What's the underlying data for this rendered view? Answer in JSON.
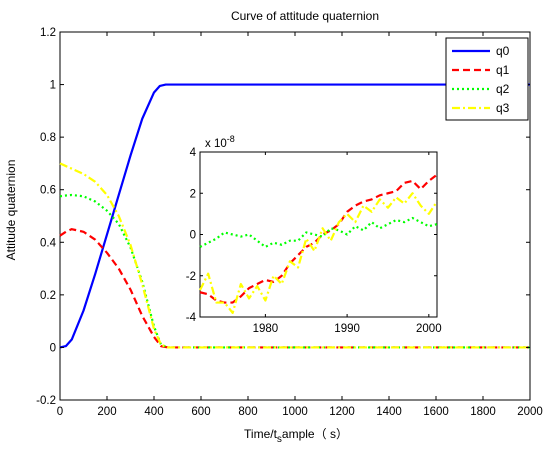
{
  "chart_data": [
    {
      "type": "line",
      "title": "Curve of attitude quaternion",
      "xlabel": "Time/t",
      "xlabel_sub": "s",
      "xlabel_tail": "ample",
      "xlabel_unit": "（ s）",
      "ylabel": "Attitude quaternion",
      "xlim": [
        0,
        2000
      ],
      "ylim": [
        -0.2,
        1.2
      ],
      "xticks": [
        "0",
        "200",
        "400",
        "600",
        "800",
        "1000",
        "1200",
        "1400",
        "1600",
        "1800",
        "2000"
      ],
      "yticks": [
        "-0.2",
        "0",
        "0.2",
        "0.4",
        "0.6",
        "0.8",
        "1",
        "1.2"
      ],
      "grid": false,
      "legend": "top-right",
      "series": [
        {
          "name": "q0",
          "color": "#0000FF",
          "style": "solid",
          "x": [
            0,
            25,
            50,
            100,
            150,
            200,
            250,
            300,
            350,
            400,
            425,
            450,
            500,
            1000,
            1500,
            2000
          ],
          "y": [
            0,
            0.005,
            0.03,
            0.14,
            0.28,
            0.43,
            0.58,
            0.73,
            0.87,
            0.97,
            0.995,
            1.0,
            1.0,
            1.0,
            1.0,
            1.0
          ]
        },
        {
          "name": "q1",
          "color": "#FF0000",
          "style": "dashed",
          "x": [
            0,
            25,
            50,
            100,
            150,
            200,
            250,
            300,
            350,
            400,
            430,
            460,
            500,
            1000,
            1500,
            2000
          ],
          "y": [
            0.425,
            0.44,
            0.45,
            0.44,
            0.41,
            0.36,
            0.3,
            0.22,
            0.12,
            0.04,
            0.005,
            0,
            0,
            0,
            0,
            0
          ]
        },
        {
          "name": "q2",
          "color": "#00FF00",
          "style": "dotted",
          "x": [
            0,
            25,
            50,
            100,
            150,
            200,
            250,
            300,
            350,
            400,
            430,
            460,
            500,
            1000,
            1500,
            2000
          ],
          "y": [
            0.575,
            0.578,
            0.58,
            0.575,
            0.555,
            0.52,
            0.47,
            0.38,
            0.25,
            0.08,
            0.01,
            0,
            0,
            0,
            0,
            0
          ]
        },
        {
          "name": "q3",
          "color": "#FFFF00",
          "style": "dashdot",
          "x": [
            0,
            25,
            50,
            100,
            150,
            200,
            250,
            300,
            350,
            400,
            430,
            460,
            500,
            1000,
            1500,
            2000
          ],
          "y": [
            0.7,
            0.69,
            0.68,
            0.66,
            0.63,
            0.58,
            0.5,
            0.39,
            0.24,
            0.07,
            0.01,
            0,
            0,
            0,
            0,
            0
          ]
        }
      ]
    },
    {
      "type": "line",
      "title": "",
      "scale_label": "x 10",
      "scale_exp": "-8",
      "xlim": [
        1972,
        2001
      ],
      "ylim": [
        -4,
        4
      ],
      "xticks": [
        "1980",
        "1990",
        "2000"
      ],
      "yticks": [
        "-4",
        "-2",
        "0",
        "2",
        "4"
      ],
      "grid": false,
      "series": [
        {
          "name": "q0",
          "color": "#0000FF",
          "style": "solid",
          "x": [],
          "y": []
        },
        {
          "name": "q1",
          "color": "#FF0000",
          "style": "dashed",
          "x": [
            1972,
            1973,
            1974,
            1975,
            1976,
            1977,
            1978,
            1979,
            1980,
            1981,
            1982,
            1983,
            1984,
            1985,
            1986,
            1987,
            1988,
            1989,
            1990,
            1991,
            1992,
            1993,
            1994,
            1995,
            1996,
            1997,
            1998,
            1999,
            2000,
            2001
          ],
          "y": [
            -2.8,
            -2.9,
            -3.2,
            -3.3,
            -3.3,
            -3.0,
            -2.6,
            -2.4,
            -2.2,
            -2.3,
            -2.0,
            -1.4,
            -1.0,
            -0.6,
            -0.4,
            0.0,
            0.2,
            0.5,
            1.1,
            1.4,
            1.6,
            1.7,
            1.9,
            2.0,
            2.1,
            2.5,
            2.6,
            2.2,
            2.6,
            2.9
          ]
        },
        {
          "name": "q2",
          "color": "#00FF00",
          "style": "dotted",
          "x": [
            1972,
            1973,
            1974,
            1975,
            1976,
            1977,
            1978,
            1979,
            1980,
            1981,
            1982,
            1983,
            1984,
            1985,
            1986,
            1987,
            1988,
            1989,
            1990,
            1991,
            1992,
            1993,
            1994,
            1995,
            1996,
            1997,
            1998,
            1999,
            2000,
            2001
          ],
          "y": [
            -0.6,
            -0.4,
            -0.2,
            0.1,
            0.0,
            -0.1,
            0.0,
            -0.3,
            -0.6,
            -0.4,
            -0.5,
            -0.3,
            -0.3,
            0.1,
            0.0,
            -0.1,
            0.3,
            0.2,
            0.0,
            0.4,
            0.2,
            0.6,
            0.3,
            0.5,
            0.7,
            0.6,
            0.8,
            0.6,
            0.4,
            0.5
          ]
        },
        {
          "name": "q3",
          "color": "#FFFF00",
          "style": "dashdot",
          "x": [
            1972,
            1973,
            1974,
            1975,
            1976,
            1977,
            1978,
            1979,
            1980,
            1981,
            1982,
            1983,
            1984,
            1985,
            1986,
            1987,
            1988,
            1989,
            1990,
            1991,
            1992,
            1993,
            1994,
            1995,
            1996,
            1997,
            1998,
            1999,
            2000,
            2001
          ],
          "y": [
            -2.7,
            -1.9,
            -3.3,
            -3.3,
            -3.8,
            -2.4,
            -3.1,
            -2.5,
            -3.2,
            -2.0,
            -2.4,
            -1.3,
            -1.6,
            -0.2,
            -0.8,
            0.3,
            -0.3,
            0.6,
            1.0,
            0.6,
            1.4,
            1.1,
            1.7,
            1.3,
            1.8,
            1.5,
            2.0,
            1.4,
            1.0,
            1.6
          ]
        }
      ]
    }
  ]
}
